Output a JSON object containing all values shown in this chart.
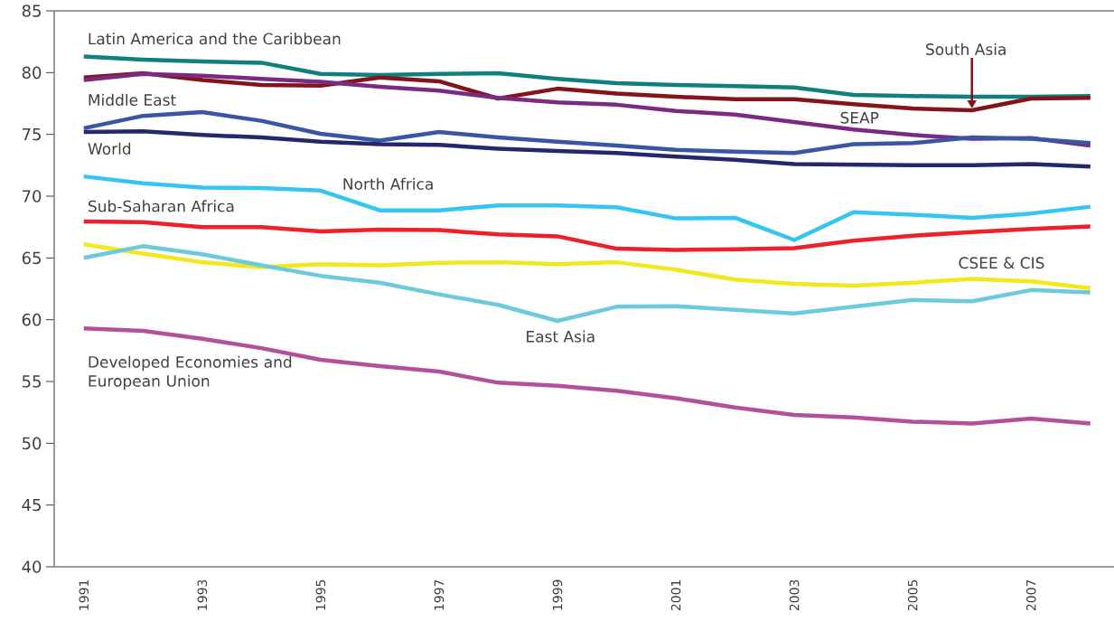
{
  "chart_data": {
    "type": "line",
    "categories": [
      "1991",
      null,
      "1993",
      null,
      "1995",
      null,
      "1997",
      null,
      "1999",
      null,
      "2001",
      null,
      "2003",
      null,
      "2005",
      null,
      "2007",
      null
    ],
    "ylim": [
      40,
      85
    ],
    "yticks": [
      40,
      45,
      50,
      55,
      60,
      65,
      70,
      75,
      80,
      85
    ],
    "marker": "none",
    "line_style": "solid",
    "series": [
      {
        "name": "Latin America and the Caribbean",
        "color": "#10807c",
        "values": [
          81.3,
          81.05,
          80.9,
          80.8,
          79.9,
          79.8,
          79.9,
          79.95,
          79.5,
          79.15,
          79.0,
          78.9,
          78.8,
          78.2,
          78.1,
          78.05,
          78.05,
          78.1
        ]
      },
      {
        "name": "South Asia",
        "color": "#84141b",
        "values": [
          79.6,
          79.95,
          79.4,
          79.0,
          78.95,
          79.6,
          79.3,
          77.9,
          78.7,
          78.3,
          78.05,
          77.85,
          77.85,
          77.45,
          77.1,
          76.95,
          77.9,
          77.95
        ]
      },
      {
        "name": "SEAP",
        "color": "#7b2a84",
        "values": [
          79.4,
          79.9,
          79.75,
          79.5,
          79.25,
          78.85,
          78.55,
          77.95,
          77.6,
          77.4,
          76.9,
          76.6,
          76.0,
          75.4,
          74.95,
          74.65,
          74.7,
          74.1
        ]
      },
      {
        "name": "Middle East",
        "color": "#3a55a4",
        "values": [
          75.5,
          76.5,
          76.8,
          76.1,
          75.05,
          74.5,
          75.2,
          74.75,
          74.4,
          74.1,
          73.75,
          73.6,
          73.5,
          74.2,
          74.3,
          74.75,
          74.65,
          74.3
        ]
      },
      {
        "name": "World",
        "color": "#25276d",
        "values": [
          75.2,
          75.25,
          74.95,
          74.75,
          74.4,
          74.2,
          74.15,
          73.85,
          73.65,
          73.5,
          73.2,
          72.95,
          72.6,
          72.55,
          72.5,
          72.5,
          72.6,
          72.4
        ]
      },
      {
        "name": "North Africa",
        "color": "#35c5f2",
        "values": [
          71.6,
          71.05,
          70.7,
          70.65,
          70.45,
          68.85,
          68.85,
          69.25,
          69.25,
          69.1,
          68.2,
          68.25,
          66.45,
          68.7,
          68.5,
          68.25,
          68.6,
          69.15
        ]
      },
      {
        "name": "Sub-Saharan Africa",
        "color": "#ed2127",
        "values": [
          67.95,
          67.9,
          67.5,
          67.5,
          67.15,
          67.3,
          67.25,
          66.9,
          66.75,
          65.75,
          65.65,
          65.7,
          65.8,
          66.4,
          66.8,
          67.1,
          67.35,
          67.55
        ]
      },
      {
        "name": "CSEE & CIS",
        "color": "#f2e81c",
        "values": [
          66.1,
          65.35,
          64.65,
          64.25,
          64.5,
          64.4,
          64.6,
          64.65,
          64.5,
          64.65,
          64.05,
          63.25,
          62.9,
          62.75,
          63.0,
          63.3,
          63.1,
          62.55
        ]
      },
      {
        "name": "East Asia",
        "color": "#6ccbdb",
        "values": [
          65.0,
          65.95,
          65.3,
          64.4,
          63.55,
          63.0,
          62.05,
          61.2,
          59.9,
          61.05,
          61.1,
          60.8,
          60.5,
          61.05,
          61.6,
          61.5,
          62.4,
          62.2
        ]
      },
      {
        "name": "Developed Economies and European Union",
        "color": "#b1519e",
        "values": [
          59.3,
          59.1,
          58.45,
          57.7,
          56.75,
          56.25,
          55.8,
          54.9,
          54.65,
          54.25,
          53.65,
          52.9,
          52.3,
          52.1,
          51.75,
          51.6,
          52.0,
          51.6
        ]
      }
    ]
  }
}
